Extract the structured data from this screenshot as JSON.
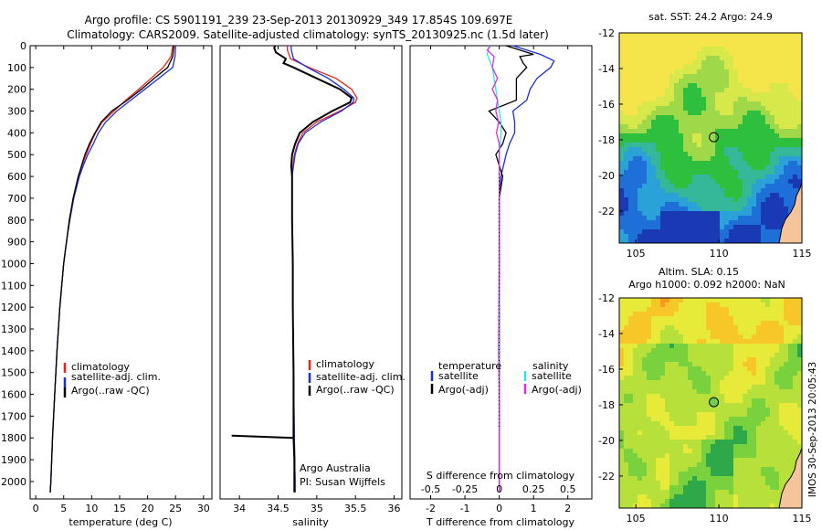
{
  "header": {
    "line1": "Argo profile: CS 5901191_239 23-Sep-2013 20130929_349 17.854S 109.697E",
    "line2": "Climatology: CARS2009. Satellite-adjusted climatology: synTS_20130925.nc (1.5d later)"
  },
  "footer": {
    "credit1": "Argo Australia",
    "credit2": "PI: Susan Wijffels",
    "stamp": "IMOS 30-Sep-2013 20:05:43"
  },
  "colors": {
    "climatology": "#e8231a",
    "satellite": "#1a2fd6",
    "argo": "#000000",
    "sal_satellite": "#2fe6e6",
    "sal_argo": "#e02bd8"
  },
  "chart_data": [
    {
      "type": "line",
      "id": "temperature",
      "xlabel": "temperature (deg C)",
      "xlim": [
        -1,
        31.5
      ],
      "xticks": [
        "0",
        "5",
        "10",
        "15",
        "20",
        "25",
        "30"
      ],
      "xtick_values": [
        0,
        5,
        10,
        15,
        20,
        25,
        30
      ],
      "ylim": [
        2080,
        0
      ],
      "yticks": [
        "0",
        "100",
        "200",
        "300",
        "400",
        "500",
        "600",
        "700",
        "800",
        "900",
        "1000",
        "1100",
        "1200",
        "1300",
        "1400",
        "1500",
        "1600",
        "1700",
        "1800",
        "1900",
        "2000"
      ],
      "ytick_values": [
        0,
        100,
        200,
        300,
        400,
        500,
        600,
        700,
        800,
        900,
        1000,
        1100,
        1200,
        1300,
        1400,
        1500,
        1600,
        1700,
        1800,
        1900,
        2000
      ],
      "legend": [
        "climatology",
        "satellite-adj. clim.",
        "Argo(..raw -QC)"
      ],
      "series": [
        {
          "name": "climatology",
          "depth": [
            0,
            50,
            100,
            150,
            200,
            250,
            300,
            350,
            400,
            450,
            500,
            550,
            600,
            700,
            800,
            900,
            1000,
            1200,
            1400,
            1600,
            1800,
            2000,
            2050
          ],
          "values": [
            24.5,
            24.2,
            22.8,
            20.6,
            18.4,
            16.1,
            14.0,
            11.9,
            10.7,
            9.8,
            9.0,
            8.3,
            7.6,
            6.7,
            6.0,
            5.5,
            5.0,
            4.3,
            3.8,
            3.4,
            3.0,
            2.7,
            2.6
          ]
        },
        {
          "name": "satellite-adj. clim.",
          "depth": [
            0,
            50,
            100,
            150,
            200,
            250,
            300,
            350,
            400,
            450,
            500,
            550,
            600,
            700,
            800,
            900,
            1000,
            1200,
            1400,
            1600,
            1800,
            2000,
            2050
          ],
          "values": [
            25.0,
            24.9,
            24.5,
            22.0,
            19.5,
            17.0,
            14.5,
            12.5,
            11.2,
            10.3,
            9.3,
            8.5,
            7.8,
            6.8,
            6.1,
            5.5,
            5.0,
            4.3,
            3.8,
            3.4,
            3.0,
            2.7,
            2.6
          ]
        },
        {
          "name": "Argo(..raw -QC)",
          "depth": [
            0,
            50,
            100,
            150,
            200,
            250,
            300,
            350,
            400,
            450,
            500,
            550,
            600,
            700,
            800,
            900,
            1000,
            1200,
            1400,
            1600,
            1800,
            2000,
            2050
          ],
          "values": [
            24.7,
            24.5,
            23.6,
            21.2,
            18.9,
            16.4,
            13.6,
            11.7,
            10.6,
            9.6,
            8.8,
            8.2,
            7.6,
            6.7,
            6.0,
            5.5,
            5.0,
            4.3,
            3.8,
            3.4,
            3.0,
            2.7,
            2.6
          ]
        }
      ]
    },
    {
      "type": "line",
      "id": "salinity",
      "xlabel": "salinity",
      "xlim": [
        33.75,
        36.1
      ],
      "xticks": [
        "34",
        "34.5",
        "35",
        "35.5",
        "36"
      ],
      "xtick_values": [
        34,
        34.5,
        35,
        35.5,
        36
      ],
      "ylim": [
        2080,
        0
      ],
      "legend": [
        "climatology",
        "satellite-adj. clim.",
        "Argo(..raw -QC)"
      ],
      "series": [
        {
          "name": "climatology",
          "depth": [
            0,
            20,
            60,
            100,
            150,
            200,
            240,
            260,
            300,
            350,
            400,
            450,
            500,
            550,
            600,
            700,
            800,
            1000,
            1200,
            1500,
            1800,
            2000,
            2050
          ],
          "values": [
            34.62,
            34.62,
            34.66,
            34.9,
            35.25,
            35.45,
            35.52,
            35.5,
            35.3,
            35.0,
            34.82,
            34.75,
            34.71,
            34.69,
            34.68,
            34.68,
            34.68,
            34.69,
            34.69,
            34.7,
            34.71,
            34.72,
            34.72
          ]
        },
        {
          "name": "satellite-adj. clim.",
          "depth": [
            0,
            20,
            60,
            100,
            150,
            200,
            240,
            260,
            300,
            350,
            400,
            450,
            500,
            550,
            600,
            700,
            800,
            1000,
            1200,
            1500,
            1800,
            2000,
            2050
          ],
          "values": [
            34.67,
            34.67,
            34.7,
            34.88,
            35.15,
            35.35,
            35.48,
            35.47,
            35.32,
            35.05,
            34.85,
            34.76,
            34.72,
            34.7,
            34.68,
            34.68,
            34.68,
            34.69,
            34.69,
            34.7,
            34.71,
            34.72,
            34.72
          ]
        },
        {
          "name": "Argo(..raw -QC)",
          "depth": [
            0,
            10,
            30,
            60,
            80,
            100,
            150,
            200,
            240,
            260,
            300,
            350,
            400,
            450,
            500,
            550,
            600,
            700,
            800,
            1000,
            1200,
            1500,
            1700,
            1800,
            1790,
            1800,
            1900,
            2050
          ],
          "values": [
            34.46,
            34.45,
            34.47,
            34.6,
            34.57,
            34.7,
            35.0,
            35.3,
            35.45,
            35.43,
            35.2,
            34.95,
            34.78,
            34.72,
            34.68,
            34.67,
            34.68,
            34.68,
            34.68,
            34.69,
            34.69,
            34.7,
            34.7,
            34.7,
            33.9,
            34.7,
            34.71,
            34.71
          ]
        }
      ]
    },
    {
      "type": "line",
      "id": "differences",
      "xlabel": "T difference from climatology",
      "xlabel2": "S difference from climatology",
      "xlim": [
        -2.6,
        2.7
      ],
      "xticks": [
        "-2",
        "-1",
        "0",
        "1",
        "2"
      ],
      "xtick_values": [
        -2,
        -1,
        0,
        1,
        2
      ],
      "s_xticks": [
        "-0.5",
        "-0.25",
        "0",
        "0.25",
        "0.5"
      ],
      "legend_temperature": [
        "temperature",
        "satellite",
        "Argo(-adj)"
      ],
      "legend_salinity": [
        "salinity",
        "satellite",
        "Argo(-adj)"
      ],
      "series": [
        {
          "name": "satellite",
          "quantity": "temperature",
          "depth": [
            0,
            40,
            70,
            100,
            150,
            200,
            250,
            300,
            350,
            400,
            450,
            500,
            600,
            700,
            800,
            1000,
            1400,
            2050
          ],
          "values": [
            0.4,
            1.2,
            1.6,
            1.5,
            1.1,
            0.9,
            0.8,
            0.4,
            0.45,
            0.45,
            0.3,
            0.2,
            0.05,
            0.0,
            0.0,
            0.0,
            0.0,
            0.0
          ]
        },
        {
          "name": "Argo(-adj)",
          "quantity": "temperature",
          "depth": [
            0,
            40,
            50,
            80,
            100,
            150,
            200,
            250,
            300,
            350,
            400,
            450,
            500,
            600,
            700,
            800,
            1000,
            1400,
            2050
          ],
          "values": [
            0.2,
            1.0,
            0.6,
            0.7,
            0.8,
            0.5,
            0.5,
            0.5,
            -0.3,
            0.0,
            0.2,
            0.1,
            -0.1,
            0.1,
            0.0,
            0.0,
            0.0,
            0.0,
            0.0
          ]
        },
        {
          "name": "satellite",
          "quantity": "salinity",
          "depth": [
            0,
            40,
            80,
            100,
            150,
            200,
            250,
            300,
            350,
            400,
            450,
            500,
            600,
            700,
            800,
            1000,
            1400,
            2050
          ],
          "values": [
            -0.3,
            -0.35,
            -0.25,
            -0.2,
            -0.15,
            -0.1,
            -0.05,
            0.0,
            0.05,
            0.05,
            0.03,
            0.0,
            0.0,
            0.0,
            0.0,
            0.0,
            0.0,
            0.0
          ]
        },
        {
          "name": "Argo(-adj)",
          "quantity": "salinity",
          "depth": [
            0,
            20,
            50,
            100,
            150,
            200,
            250,
            300,
            350,
            400,
            450,
            500,
            600,
            700,
            800,
            1000,
            1400,
            1600,
            2050
          ],
          "values": [
            -0.25,
            -0.35,
            -0.15,
            -0.2,
            -0.05,
            -0.2,
            -0.05,
            -0.1,
            -0.02,
            -0.08,
            0.0,
            0.0,
            0.0,
            0.0,
            0.0,
            0.0,
            -0.02,
            0.0,
            0.0
          ]
        }
      ]
    },
    {
      "type": "heatmap",
      "id": "sst-map",
      "title": "sat. SST: 24.2  Argo: 24.9",
      "xlim": [
        104,
        115
      ],
      "ylim": [
        -23.8,
        -12
      ],
      "xticks": [
        "105",
        "110",
        "115"
      ],
      "xtick_values": [
        105,
        110,
        115
      ],
      "yticks": [
        "-12",
        "-14",
        "-16",
        "-18",
        "-20",
        "-22"
      ],
      "ytick_values": [
        -12,
        -14,
        -16,
        -18,
        -20,
        -22
      ],
      "marker": {
        "lon": 109.697,
        "lat": -17.854
      }
    },
    {
      "type": "heatmap",
      "id": "sla-map",
      "title": "Altim. SLA: 0.15",
      "title2": "Argo h1000: 0.092 h2000: NaN",
      "xlim": [
        104,
        115
      ],
      "ylim": [
        -23.8,
        -12
      ],
      "xticks": [
        "105",
        "110",
        "115"
      ],
      "xtick_values": [
        105,
        110,
        115
      ],
      "yticks": [
        "-12",
        "-14",
        "-16",
        "-18",
        "-20",
        "-22"
      ],
      "ytick_values": [
        -12,
        -14,
        -16,
        -18,
        -20,
        -22
      ],
      "marker": {
        "lon": 109.697,
        "lat": -17.854
      }
    }
  ]
}
